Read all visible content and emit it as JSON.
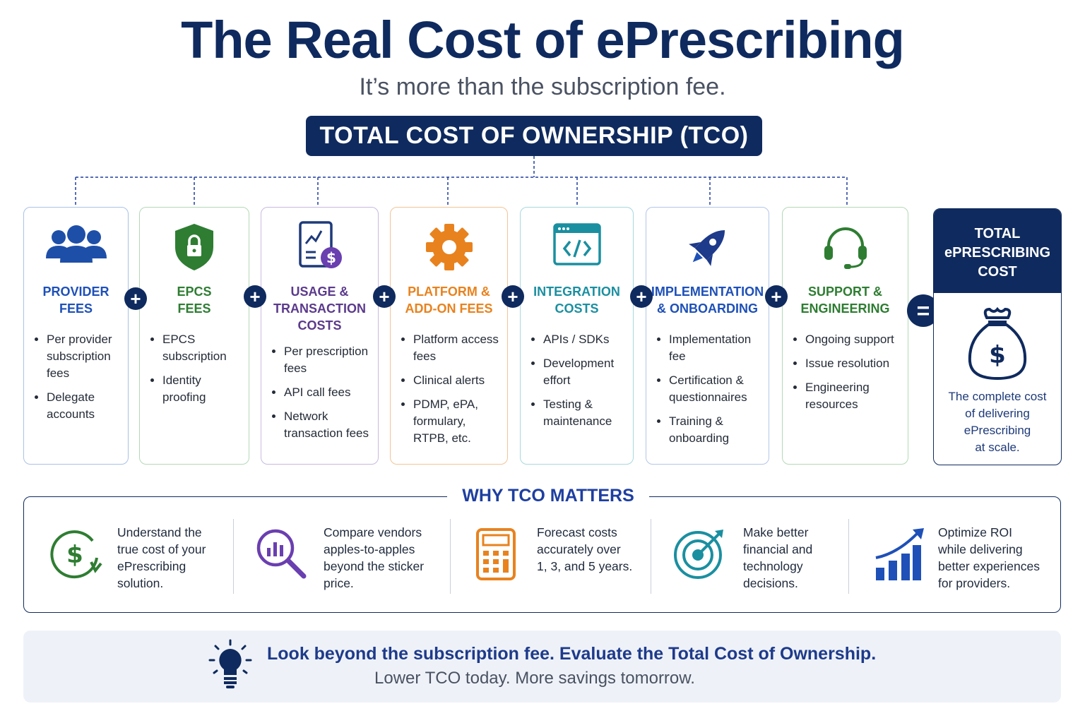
{
  "title": "The Real Cost of ePrescribing",
  "subtitle": "It’s more than the subscription fee.",
  "banner": "TOTAL COST OF OWNERSHIP (TCO)",
  "colors": {
    "navy": "#0f2a5e",
    "blue": "#1e50a8",
    "green": "#2e7d32",
    "purple": "#5b3a8c",
    "orange": "#e8821e",
    "teal": "#1a8fa0"
  },
  "cards": [
    {
      "title": "PROVIDER\nFEES",
      "icon": "people-group-icon",
      "items": [
        "Per provider subscription fees",
        "Delegate accounts"
      ]
    },
    {
      "title": "EPCS\nFEES",
      "icon": "shield-lock-icon",
      "items": [
        "EPCS subscription",
        "Identity proofing"
      ]
    },
    {
      "title": "USAGE &\nTRANSACTION\nCOSTS",
      "icon": "document-dollar-icon",
      "items": [
        "Per prescription fees",
        "API call fees",
        "Network transaction fees"
      ]
    },
    {
      "title": "PLATFORM &\nADD-ON FEES",
      "icon": "gear-icon",
      "items": [
        "Platform access fees",
        "Clinical alerts",
        "PDMP, ePA, formulary, RTPB, etc."
      ]
    },
    {
      "title": "INTEGRATION\nCOSTS",
      "icon": "code-window-icon",
      "items": [
        "APIs / SDKs",
        "Development effort",
        "Testing & maintenance"
      ]
    },
    {
      "title": "IMPLEMENTATION\n& ONBOARDING",
      "icon": "rocket-icon",
      "items": [
        "Implementation fee",
        "Certification & questionnaires",
        "Training & onboarding"
      ]
    },
    {
      "title": "SUPPORT &\nENGINEERING",
      "icon": "headset-icon",
      "items": [
        "Ongoing support",
        "Issue resolution",
        "Engineering resources"
      ]
    }
  ],
  "operators": {
    "plus": "+",
    "equals": "="
  },
  "total": {
    "title": "TOTAL\nePRESCRIBING\nCOST",
    "icon": "money-bag-icon",
    "description": "The complete cost\nof delivering\nePrescribing\nat scale."
  },
  "why": {
    "title": "WHY TCO MATTERS",
    "items": [
      {
        "icon": "dollar-cycle-icon",
        "text": "Understand the\ntrue cost of your\nePrescribing\nsolution."
      },
      {
        "icon": "magnifier-chart-icon",
        "text": "Compare vendors\napples-to-apples\nbeyond the sticker\nprice."
      },
      {
        "icon": "calculator-icon",
        "text": "Forecast costs\naccurately over\n1, 3, and 5 years."
      },
      {
        "icon": "target-icon",
        "text": "Make better\nfinancial and\ntechnology\ndecisions."
      },
      {
        "icon": "growth-chart-icon",
        "text": "Optimize ROI\nwhile delivering\nbetter experiences\nfor providers."
      }
    ]
  },
  "footer": {
    "icon": "lightbulb-icon",
    "main": "Look beyond the subscription fee. Evaluate the Total Cost of Ownership.",
    "sub": "Lower TCO today. More savings tomorrow."
  }
}
